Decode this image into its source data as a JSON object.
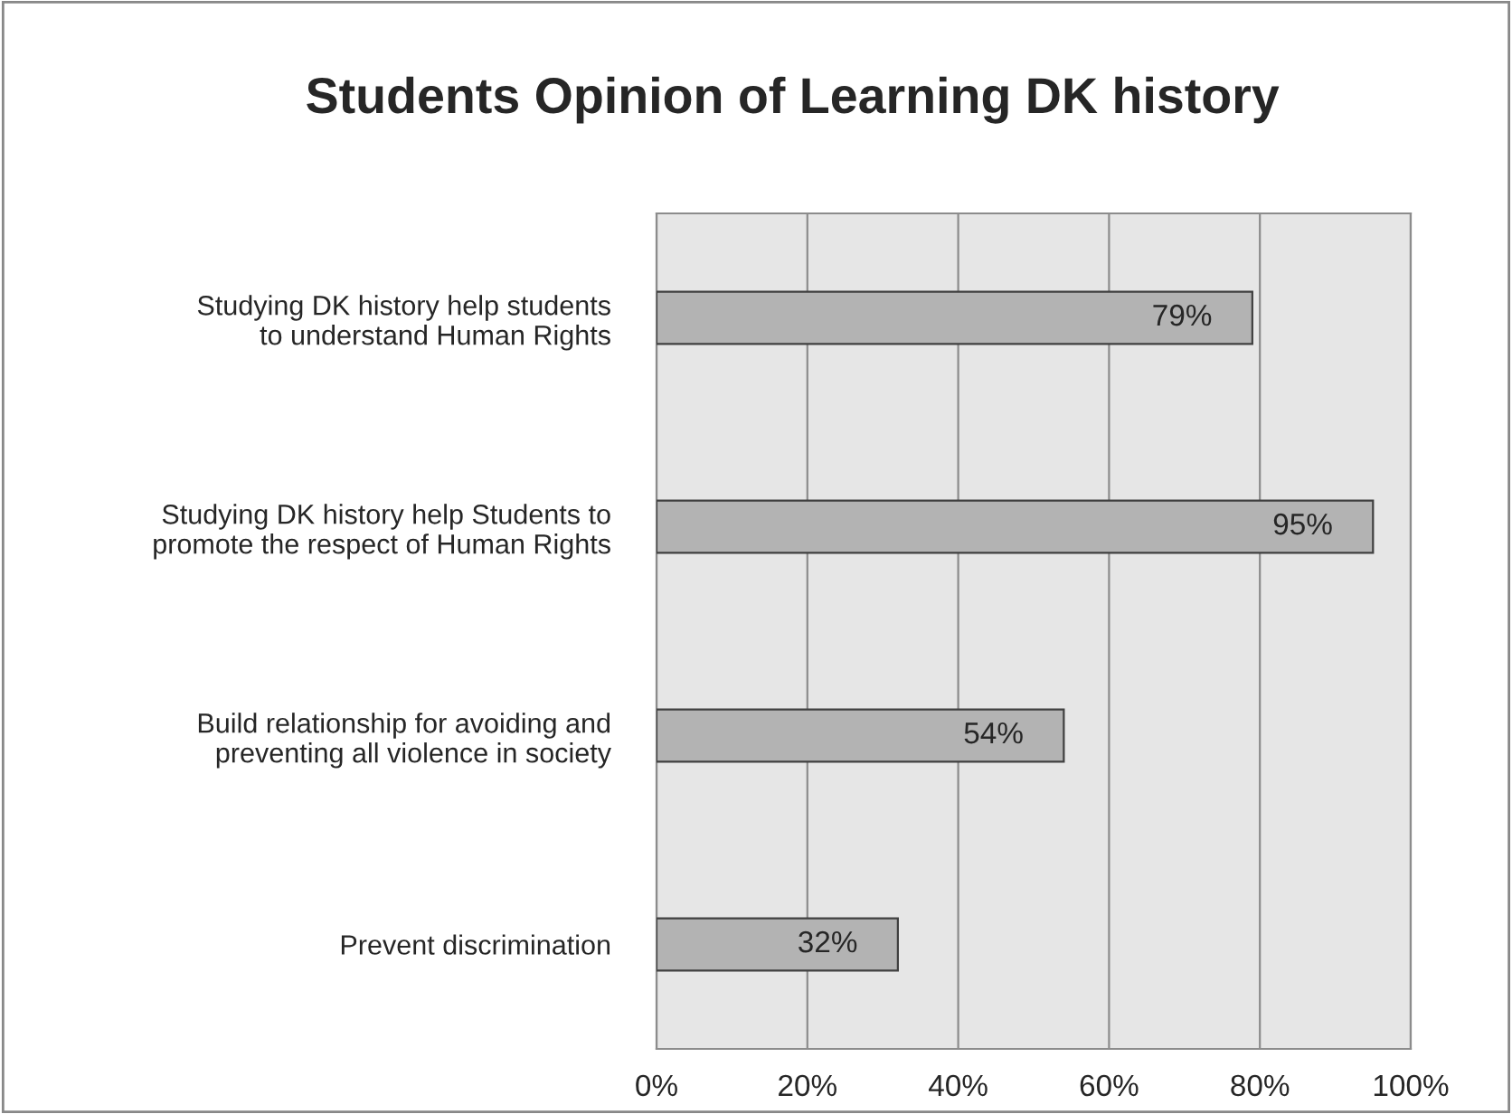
{
  "chart_data": {
    "type": "bar",
    "orientation": "horizontal",
    "title": "Students Opinion of Learning DK history",
    "categories": [
      "Studying DK history help students to understand Human Rights",
      "Studying DK history help Students to promote the respect of Human Rights",
      "Build relationship for avoiding and preventing all violence in society",
      "Prevent discrimination"
    ],
    "values": [
      79,
      95,
      54,
      32
    ],
    "value_labels": [
      "79%",
      "95%",
      "54%",
      "32%"
    ],
    "color": "#b3b3b3",
    "xlim": [
      0,
      100
    ],
    "xticks": [
      {
        "value": 0,
        "label": "0%"
      },
      {
        "value": 20,
        "label": "20%"
      },
      {
        "value": 40,
        "label": "40%"
      },
      {
        "value": 60,
        "label": "60%"
      },
      {
        "value": 80,
        "label": "80%"
      },
      {
        "value": 100,
        "label": "100%"
      }
    ],
    "grid": "x"
  }
}
